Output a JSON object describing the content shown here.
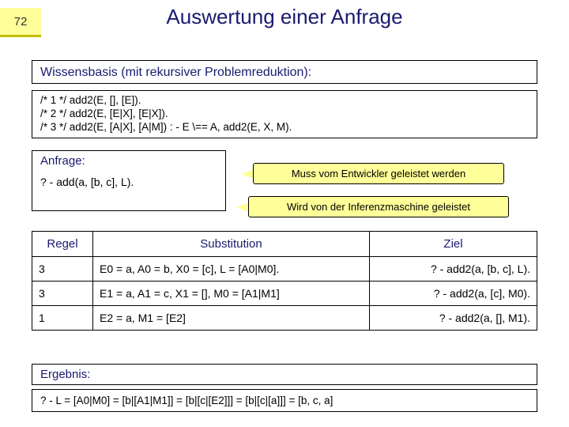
{
  "page_number": "72",
  "title": "Auswertung einer Anfrage",
  "kb_label": "Wissensbasis (mit rekursiver Problemreduktion):",
  "code_lines": {
    "l1": "/* 1 */ add2(E, [], [E]).",
    "l2": "/* 2 */ add2(E, [E|X], [E|X]).",
    "l3": "/* 3 */ add2(E, [A|X], [A|M]) : - E \\== A, add2(E, X, M)."
  },
  "query_label": "Anfrage:",
  "query_text": "? - add(a, [b, c], L).",
  "bubble1": "Muss vom Entwickler geleistet werden",
  "bubble2": "Wird von der Inferenzmaschine geleistet",
  "table": {
    "h1": "Regel",
    "h2": "Substitution",
    "h3": "Ziel",
    "rows": [
      {
        "r": "3",
        "s": "E0 = a, A0 = b, X0 = [c], L = [A0|M0].",
        "z": "? - add2(a, [b, c], L)."
      },
      {
        "r": "3",
        "s": "E1 = a, A1 = c, X1 = [], M0 = [A1|M1]",
        "z": "? - add2(a, [c], M0)."
      },
      {
        "r": "1",
        "s": "E2 = a, M1 = [E2]",
        "z": "? - add2(a, [], M1)."
      }
    ]
  },
  "result_label": "Ergebnis:",
  "result_text": "? - L = [A0|M0] = [b|[A1|M1]] = [b|[c|[E2]]] = [b|[c|[a]]] = [b, c, a]",
  "colors": {
    "accent_bg": "#ffff99",
    "heading": "#1a1a70"
  }
}
